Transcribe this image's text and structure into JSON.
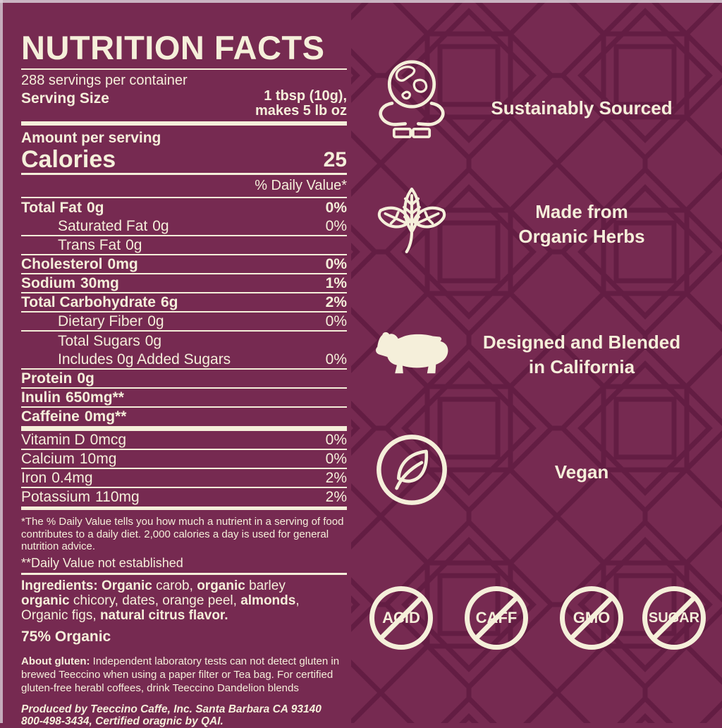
{
  "colors": {
    "background": "#762A51",
    "pattern_line": "#5E1A3F",
    "ink_cream": "#F5EFDA"
  },
  "nutrition": {
    "title": "NUTRITION FACTS",
    "servings_per_container": "288 servings per container",
    "serving_size_label": "Serving Size",
    "serving_size_line1": "1 tbsp (10g),",
    "serving_size_line2": "makes 5 lb oz",
    "amount_per_serving": "Amount per serving",
    "calories_label": "Calories",
    "calories_value": "25",
    "daily_value_header": "% Daily Value*",
    "rows": [
      {
        "name": "Total Fat",
        "value": "0g",
        "dv": "0%",
        "bold": true,
        "indent": false,
        "sep": null
      },
      {
        "name": "Saturated Fat",
        "value": "0g",
        "dv": "0%",
        "bold": false,
        "indent": true,
        "sep": "thin"
      },
      {
        "name": "Trans Fat",
        "value": "0g",
        "dv": "",
        "bold": false,
        "indent": true,
        "sep": "thin"
      },
      {
        "name": "Cholesterol",
        "value": "0mg",
        "dv": "0%",
        "bold": true,
        "indent": false,
        "sep": "thin"
      },
      {
        "name": "Sodium",
        "value": "30mg",
        "dv": "1%",
        "bold": true,
        "indent": false,
        "sep": "thin"
      },
      {
        "name": "Total Carbohydrate",
        "value": "6g",
        "dv": "2%",
        "bold": true,
        "indent": false,
        "sep": "thin"
      },
      {
        "name": "Dietary Fiber",
        "value": "0g",
        "dv": "0%",
        "bold": false,
        "indent": true,
        "sep": "thin"
      },
      {
        "name": "Total Sugars",
        "value": "0g",
        "dv": "",
        "bold": false,
        "indent": true,
        "sep": null
      },
      {
        "name": "Includes 0g Added Sugars",
        "value": "",
        "dv": "0%",
        "bold": false,
        "indent": true,
        "sep": "thin"
      },
      {
        "name": "Protein",
        "value": "0g",
        "dv": "",
        "bold": true,
        "indent": false,
        "sep": "thin"
      },
      {
        "name": "Inulin",
        "value": "650mg**",
        "dv": "",
        "bold": true,
        "indent": false,
        "sep": "thin"
      },
      {
        "name": "Caffeine",
        "value": "0mg**",
        "dv": "",
        "bold": true,
        "indent": false,
        "sep": "thick"
      },
      {
        "name": "Vitamin D",
        "value": "0mcg",
        "dv": "0%",
        "bold": false,
        "indent": false,
        "sep": "thin"
      },
      {
        "name": "Calcium",
        "value": "10mg",
        "dv": "0%",
        "bold": false,
        "indent": false,
        "sep": "thin"
      },
      {
        "name": "Iron",
        "value": "0.4mg",
        "dv": "2%",
        "bold": false,
        "indent": false,
        "sep": "thin"
      },
      {
        "name": "Potassium",
        "value": "110mg",
        "dv": "2%",
        "bold": false,
        "indent": false,
        "sep": "end"
      }
    ],
    "footnote_dv": "*The % Daily Value tells you how much a nutrient in a serving of food contributes to a daily diet. 2,000 calories a day is used for general nutrition advice.",
    "footnote_not_established": "**Daily Value not established",
    "ingredients_lines": [
      {
        "segments": [
          {
            "text": "Ingredients: Organic",
            "bold": true
          },
          {
            "text": " carob, ",
            "bold": false
          },
          {
            "text": "organic",
            "bold": true
          },
          {
            "text": " barley",
            "bold": false
          }
        ]
      },
      {
        "segments": [
          {
            "text": "organic",
            "bold": true
          },
          {
            "text": " chicory, dates, orange peel, ",
            "bold": false
          },
          {
            "text": "almonds",
            "bold": true
          },
          {
            "text": ",",
            "bold": false
          }
        ]
      },
      {
        "segments": [
          {
            "text": "Organic figs, ",
            "bold": false
          },
          {
            "text": "natural citrus flavor.",
            "bold": true
          }
        ]
      }
    ],
    "organic_claim": "75% Organic",
    "gluten_bold": "About gluten:",
    "gluten_text": " Independent laboratory tests can not detect gluten in brewed Teeccino when using a paper filter or Tea bag. For certified gluten-free herabl coffees, drink Teeccino Dandelion blends",
    "produced_line1": "Produced by Teeccino Caffe, Inc. Santa Barbara CA 93140",
    "produced_line2": "800-498-3434, Certified oragnic by QAI."
  },
  "claims": [
    {
      "icon": "earth-hands-icon",
      "lines": [
        "Sustainably Sourced"
      ]
    },
    {
      "icon": "herb-leaves-icon",
      "lines": [
        "Made from",
        "Organic Herbs"
      ]
    },
    {
      "icon": "bear-icon",
      "lines": [
        "Designed and Blended",
        "in California"
      ]
    },
    {
      "icon": "leaf-circle-icon",
      "lines": [
        "Vegan"
      ]
    }
  ],
  "badges": [
    {
      "label": "ACID"
    },
    {
      "label": "CAFF"
    },
    {
      "label": "GMO"
    },
    {
      "label": "SUGAR"
    }
  ]
}
